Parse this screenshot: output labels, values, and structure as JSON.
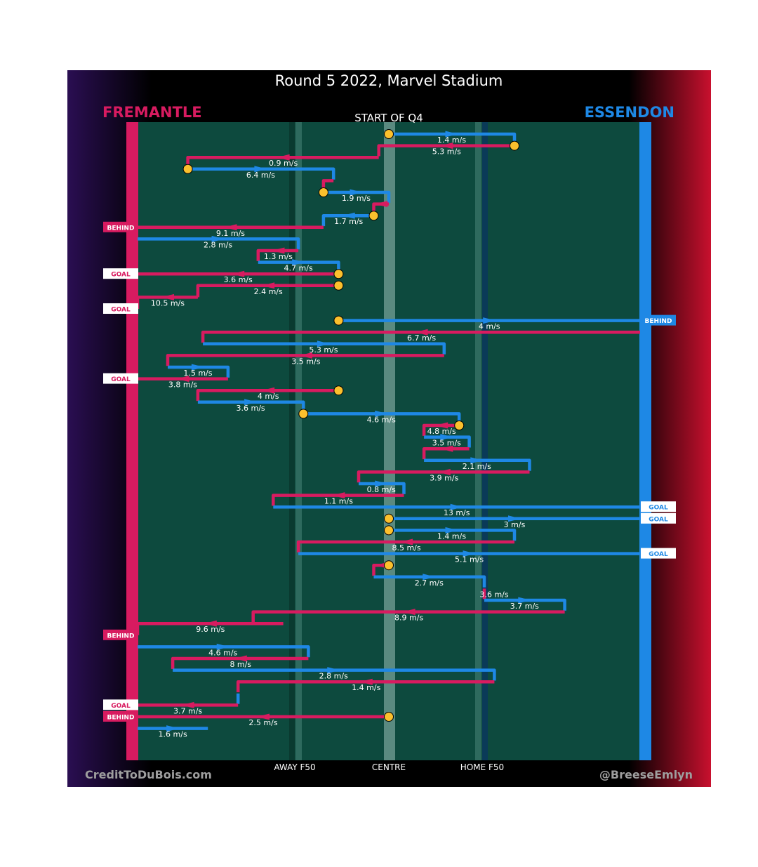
{
  "title": "Round 5 2022, Marvel Stadium",
  "subtitle": "START OF Q4",
  "teams": {
    "left": {
      "name": "FREMANTLE",
      "color": "#d81b60"
    },
    "right": {
      "name": "ESSENDON",
      "color": "#1e88e5"
    }
  },
  "axis_labels": {
    "away": "AWAY F50",
    "centre": "CENTRE",
    "home": "HOME F50"
  },
  "credits": {
    "left": "CreditToDuBois.com",
    "right": "@BreeseEmlyn"
  },
  "colors": {
    "field": "#0d4a3e",
    "marker": "#fbc02d",
    "title_bg": "#000000"
  },
  "chart_data": {
    "type": "line",
    "description": "Possession chains: each chain has a team, a start position and a list of [x_end, y_row] legs; x is field position 0 (Fremantle end) to 100 (Essendon end), y is the row index (top=0).",
    "chains": [
      {
        "team": "ESS",
        "start": [
          50,
          0
        ],
        "path": [
          [
            75,
            0
          ],
          [
            75,
            0.7
          ]
        ],
        "speed": "1.4 m/s",
        "start_marker": true
      },
      {
        "team": "FRE",
        "start": [
          75,
          1
        ],
        "path": [
          [
            48,
            1
          ],
          [
            48,
            1.9
          ]
        ],
        "speed": "5.3 m/s",
        "start_marker": true
      },
      {
        "team": "FRE",
        "start": [
          48,
          2
        ],
        "path": [
          [
            10,
            2
          ],
          [
            10,
            2.9
          ]
        ],
        "speed": "0.9 m/s"
      },
      {
        "team": "ESS",
        "start": [
          10,
          3
        ],
        "path": [
          [
            39,
            3
          ],
          [
            39,
            3.9
          ]
        ],
        "speed": "6.4 m/s",
        "start_marker": true
      },
      {
        "team": "FRE",
        "start": [
          39,
          4
        ],
        "path": [
          [
            37,
            4
          ],
          [
            37,
            4.9
          ]
        ],
        "speed": ""
      },
      {
        "team": "ESS",
        "start": [
          37,
          5
        ],
        "path": [
          [
            50,
            5
          ],
          [
            50,
            5.9
          ]
        ],
        "speed": "1.9 m/s",
        "start_marker": true
      },
      {
        "team": "FRE",
        "start": [
          50,
          6
        ],
        "path": [
          [
            47,
            6
          ],
          [
            47,
            6.9
          ]
        ],
        "speed": ""
      },
      {
        "team": "ESS",
        "start": [
          47,
          7
        ],
        "path": [
          [
            37,
            7
          ],
          [
            37,
            7.9
          ]
        ],
        "speed": "1.7 m/s",
        "start_marker": true
      },
      {
        "team": "FRE",
        "start": [
          37,
          8
        ],
        "path": [
          [
            0,
            8
          ]
        ],
        "speed": "9.1 m/s",
        "outcome": "BEHIND"
      },
      {
        "team": "ESS",
        "start": [
          0,
          9
        ],
        "path": [
          [
            32,
            9
          ],
          [
            32,
            9.9
          ]
        ],
        "speed": "2.8 m/s"
      },
      {
        "team": "FRE",
        "start": [
          32,
          10
        ],
        "path": [
          [
            24,
            10
          ],
          [
            24,
            10.9
          ]
        ],
        "speed": "1.3 m/s"
      },
      {
        "team": "ESS",
        "start": [
          24,
          11
        ],
        "path": [
          [
            40,
            11
          ],
          [
            40,
            11.9
          ]
        ],
        "speed": "4.7 m/s"
      },
      {
        "team": "FRE",
        "start": [
          40,
          12
        ],
        "path": [
          [
            0,
            12
          ]
        ],
        "speed": "3.6 m/s",
        "outcome": "GOAL",
        "start_marker": true
      },
      {
        "team": "FRE",
        "start": [
          40,
          13
        ],
        "path": [
          [
            12,
            13
          ],
          [
            12,
            14
          ]
        ],
        "speed": "2.4 m/s",
        "start_marker": true
      },
      {
        "team": "FRE",
        "start": [
          12,
          14
        ],
        "path": [
          [
            0,
            15
          ]
        ],
        "speed": "10.5 m/s",
        "outcome": "GOAL"
      },
      {
        "team": "ESS",
        "start": [
          40,
          16
        ],
        "path": [
          [
            100,
            16
          ]
        ],
        "speed": "4 m/s",
        "outcome": "BEHIND",
        "start_marker": true
      },
      {
        "team": "FRE",
        "start": [
          100,
          17
        ],
        "path": [
          [
            13,
            17
          ],
          [
            13,
            17.9
          ]
        ],
        "speed": "6.7 m/s"
      },
      {
        "team": "ESS",
        "start": [
          13,
          18
        ],
        "path": [
          [
            61,
            18
          ],
          [
            61,
            18.9
          ]
        ],
        "speed": "5.3 m/s"
      },
      {
        "team": "FRE",
        "start": [
          61,
          19
        ],
        "path": [
          [
            6,
            19
          ],
          [
            6,
            19.9
          ]
        ],
        "speed": "3.5 m/s"
      },
      {
        "team": "ESS",
        "start": [
          6,
          20
        ],
        "path": [
          [
            18,
            20
          ],
          [
            18,
            20.9
          ]
        ],
        "speed": "1.5 m/s"
      },
      {
        "team": "FRE",
        "start": [
          18,
          21
        ],
        "path": [
          [
            0,
            21
          ]
        ],
        "speed": "3.8 m/s",
        "outcome": "GOAL"
      },
      {
        "team": "FRE",
        "start": [
          40,
          22
        ],
        "path": [
          [
            12,
            22
          ],
          [
            12,
            22.9
          ]
        ],
        "speed": "4 m/s",
        "start_marker": true
      },
      {
        "team": "ESS",
        "start": [
          12,
          23
        ],
        "path": [
          [
            33,
            23
          ],
          [
            33,
            23.9
          ]
        ],
        "speed": "3.6 m/s"
      },
      {
        "team": "ESS",
        "start": [
          33,
          24
        ],
        "path": [
          [
            64,
            24
          ],
          [
            64,
            24.9
          ]
        ],
        "speed": "4.6 m/s",
        "start_marker": true
      },
      {
        "team": "FRE",
        "start": [
          64,
          25
        ],
        "path": [
          [
            57,
            25
          ],
          [
            57,
            25.9
          ]
        ],
        "speed": "4.8 m/s",
        "start_marker": true
      },
      {
        "team": "ESS",
        "start": [
          57,
          26
        ],
        "path": [
          [
            66,
            26
          ],
          [
            66,
            26.9
          ]
        ],
        "speed": "3.5 m/s"
      },
      {
        "team": "FRE",
        "start": [
          66,
          27
        ],
        "path": [
          [
            57,
            27
          ],
          [
            57,
            27.9
          ]
        ],
        "speed": ""
      },
      {
        "team": "ESS",
        "start": [
          57,
          28
        ],
        "path": [
          [
            78,
            28
          ],
          [
            78,
            28.9
          ]
        ],
        "speed": "2.1 m/s"
      },
      {
        "team": "FRE",
        "start": [
          78,
          29
        ],
        "path": [
          [
            44,
            29
          ],
          [
            44,
            29.9
          ]
        ],
        "speed": "3.9 m/s"
      },
      {
        "team": "ESS",
        "start": [
          44,
          30
        ],
        "path": [
          [
            53,
            30
          ],
          [
            53,
            30.9
          ]
        ],
        "speed": "0.8 m/s"
      },
      {
        "team": "FRE",
        "start": [
          53,
          31
        ],
        "path": [
          [
            27,
            31
          ],
          [
            27,
            31.9
          ]
        ],
        "speed": "1.1 m/s"
      },
      {
        "team": "ESS",
        "start": [
          27,
          32
        ],
        "path": [
          [
            100,
            32
          ]
        ],
        "speed": "13 m/s",
        "outcome": "GOAL"
      },
      {
        "team": "ESS",
        "start": [
          50,
          33
        ],
        "path": [
          [
            100,
            33
          ]
        ],
        "speed": "3 m/s",
        "outcome": "GOAL",
        "start_marker": true
      },
      {
        "team": "ESS",
        "start": [
          50,
          34
        ],
        "path": [
          [
            75,
            34
          ],
          [
            75,
            34.9
          ]
        ],
        "speed": "1.4 m/s",
        "start_marker": true
      },
      {
        "team": "FRE",
        "start": [
          75,
          35
        ],
        "path": [
          [
            32,
            35
          ],
          [
            32,
            35.9
          ]
        ],
        "speed": "8.5 m/s"
      },
      {
        "team": "ESS",
        "start": [
          32,
          36
        ],
        "path": [
          [
            100,
            36
          ]
        ],
        "speed": "5.1 m/s",
        "outcome": "GOAL"
      },
      {
        "team": "FRE",
        "start": [
          50,
          37
        ],
        "path": [
          [
            47,
            37
          ],
          [
            47,
            37.9
          ]
        ],
        "speed": "",
        "start_marker": true
      },
      {
        "team": "ESS",
        "start": [
          47,
          38
        ],
        "path": [
          [
            69,
            38
          ],
          [
            69,
            38.9
          ]
        ],
        "speed": "2.7 m/s"
      },
      {
        "team": "FRE",
        "start": [
          69,
          39
        ],
        "path": [
          [
            69,
            39.9
          ]
        ],
        "speed": "3.6 m/s"
      },
      {
        "team": "ESS",
        "start": [
          69,
          40
        ],
        "path": [
          [
            85,
            40
          ],
          [
            85,
            40.9
          ]
        ],
        "speed": "3.7 m/s"
      },
      {
        "team": "FRE",
        "start": [
          85,
          41
        ],
        "path": [
          [
            23,
            41
          ],
          [
            23,
            41.9
          ]
        ],
        "speed": "8.9 m/s"
      },
      {
        "team": "FRE",
        "start": [
          29,
          42
        ],
        "path": [
          [
            0,
            43
          ]
        ],
        "speed": "9.6 m/s",
        "outcome": "BEHIND"
      },
      {
        "team": "ESS",
        "start": [
          0,
          44
        ],
        "path": [
          [
            34,
            44
          ],
          [
            34,
            44.9
          ]
        ],
        "speed": "4.6 m/s"
      },
      {
        "team": "FRE",
        "start": [
          34,
          45
        ],
        "path": [
          [
            7,
            45
          ],
          [
            7,
            45.9
          ]
        ],
        "speed": "8 m/s"
      },
      {
        "team": "ESS",
        "start": [
          7,
          46
        ],
        "path": [
          [
            71,
            46
          ],
          [
            71,
            46.9
          ]
        ],
        "speed": "2.8 m/s"
      },
      {
        "team": "FRE",
        "start": [
          71,
          47
        ],
        "path": [
          [
            20,
            47
          ],
          [
            20,
            47.9
          ]
        ],
        "speed": "1.4 m/s"
      },
      {
        "team": "ESS",
        "start": [
          20,
          48
        ],
        "path": [
          [
            20,
            48.9
          ]
        ],
        "speed": ""
      },
      {
        "team": "FRE",
        "start": [
          20,
          49
        ],
        "path": [
          [
            0,
            49
          ]
        ],
        "speed": "3.7 m/s",
        "outcome": "GOAL"
      },
      {
        "team": "FRE",
        "start": [
          50,
          50
        ],
        "path": [
          [
            0,
            50
          ]
        ],
        "speed": "2.5 m/s",
        "outcome": "BEHIND",
        "start_marker": true
      },
      {
        "team": "ESS",
        "start": [
          0,
          51
        ],
        "path": [
          [
            14,
            51
          ]
        ],
        "speed": "1.6 m/s"
      }
    ]
  }
}
